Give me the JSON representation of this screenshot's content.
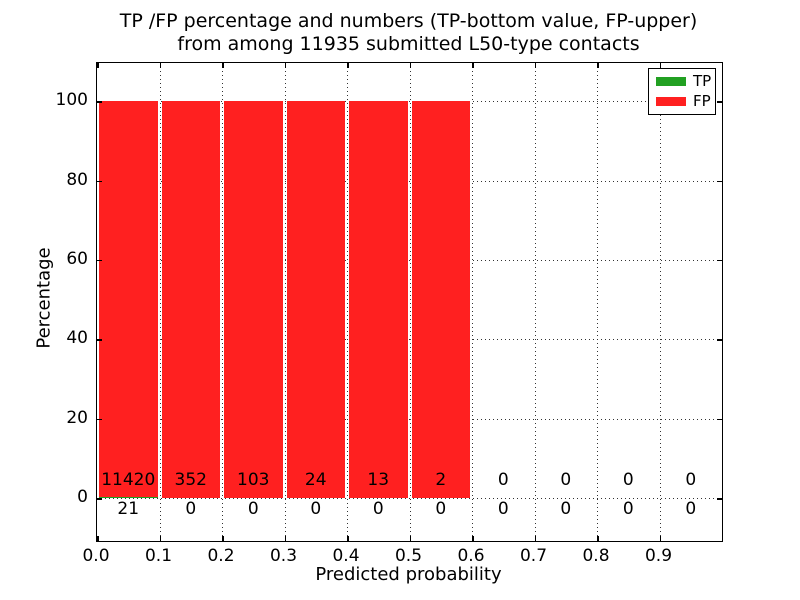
{
  "figure": {
    "title_line1": "TP /FP percentage and numbers (TP-bottom value, FP-upper)",
    "title_line2": "from among 11935 submitted L50-type contacts",
    "background": "#ffffff"
  },
  "chart_data": {
    "type": "bar",
    "stacked": true,
    "title": "TP /FP percentage and numbers (TP-bottom value, FP-upper) from among 11935 submitted L50-type contacts",
    "xlabel": "Predicted probability",
    "ylabel": "Percentage",
    "xlim": [
      0.0,
      1.0
    ],
    "ylim": [
      -10.8,
      109.6
    ],
    "xticks": [
      0.0,
      0.1,
      0.2,
      0.3,
      0.4,
      0.5,
      0.6,
      0.7,
      0.8,
      0.9
    ],
    "xtick_labels": [
      "0.0",
      "0.1",
      "0.2",
      "0.3",
      "0.4",
      "0.5",
      "0.6",
      "0.7",
      "0.8",
      "0.9"
    ],
    "yticks": [
      0,
      20,
      40,
      60,
      80,
      100
    ],
    "ytick_labels": [
      "0",
      "20",
      "40",
      "60",
      "80",
      "100"
    ],
    "grid": true,
    "grid_style": "dotted",
    "bin_width": 0.1,
    "bin_starts": [
      0.0,
      0.1,
      0.2,
      0.3,
      0.4,
      0.5,
      0.6,
      0.7,
      0.8,
      0.9
    ],
    "total_contacts": 11935,
    "series": [
      {
        "name": "TP",
        "color": "#22a022",
        "counts": [
          21,
          0,
          0,
          0,
          0,
          0,
          0,
          0,
          0,
          0
        ],
        "percent": [
          0.18,
          0,
          0,
          0,
          0,
          0,
          0,
          0,
          0,
          0
        ]
      },
      {
        "name": "FP",
        "color": "#ff2020",
        "counts": [
          11420,
          352,
          103,
          24,
          13,
          2,
          0,
          0,
          0,
          0
        ],
        "percent": [
          99.82,
          100,
          100,
          100,
          100,
          100,
          0,
          0,
          0,
          0
        ]
      }
    ],
    "legend": {
      "position": "upper right",
      "entries": [
        {
          "label": "TP",
          "color": "#22a022"
        },
        {
          "label": "FP",
          "color": "#ff2020"
        }
      ]
    }
  }
}
